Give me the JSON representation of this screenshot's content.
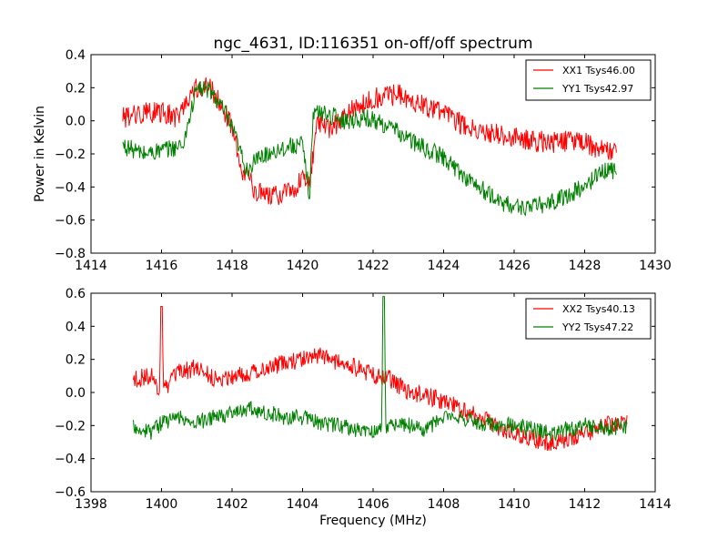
{
  "chart_data": [
    {
      "type": "line",
      "title": "ngc_4631, ID:116351 on-off/off spectrum",
      "xlabel": "",
      "ylabel": "Power in Kelvin",
      "xlim": [
        1414,
        1430
      ],
      "ylim": [
        -0.8,
        0.4
      ],
      "x_ticks": [
        "1414",
        "1416",
        "1418",
        "1420",
        "1422",
        "1424",
        "1426",
        "1428",
        "1430"
      ],
      "y_ticks": [
        "−0.8",
        "−0.6",
        "−0.4",
        "−0.2",
        "0.0",
        "0.2",
        "0.4"
      ],
      "grid": false,
      "legend_position": "top-right",
      "x_range": [
        1414.9,
        1428.9
      ],
      "series": [
        {
          "name": "XX1 Tsys46.00",
          "color": "#ff0000",
          "x": [
            1414.9,
            1415.5,
            1416.0,
            1416.5,
            1416.9,
            1417.3,
            1417.7,
            1418.0,
            1418.3,
            1418.7,
            1419.2,
            1419.7,
            1420.0,
            1420.2,
            1420.4,
            1420.8,
            1421.3,
            1421.8,
            1422.3,
            1422.8,
            1423.3,
            1424.0,
            1424.5,
            1425.0,
            1425.5,
            1426.0,
            1426.5,
            1427.0,
            1427.5,
            1428.0,
            1428.5,
            1428.9
          ],
          "values": [
            0.02,
            0.05,
            0.05,
            0.02,
            0.2,
            0.22,
            0.1,
            -0.05,
            -0.3,
            -0.43,
            -0.45,
            -0.42,
            -0.35,
            -0.4,
            0.0,
            -0.05,
            0.05,
            0.12,
            0.15,
            0.16,
            0.1,
            0.05,
            -0.02,
            -0.05,
            -0.08,
            -0.1,
            -0.12,
            -0.13,
            -0.12,
            -0.13,
            -0.18,
            -0.2
          ],
          "noise": 0.06
        },
        {
          "name": "YY1 Tsys42.97",
          "color": "#008000",
          "x": [
            1414.9,
            1415.5,
            1416.0,
            1416.6,
            1417.0,
            1417.4,
            1417.8,
            1418.1,
            1418.4,
            1418.8,
            1419.2,
            1419.7,
            1420.0,
            1420.2,
            1420.3,
            1420.6,
            1421.2,
            1421.8,
            1422.3,
            1422.8,
            1423.3,
            1424.0,
            1424.5,
            1425.0,
            1425.5,
            1426.0,
            1426.5,
            1427.0,
            1427.5,
            1428.0,
            1428.5,
            1428.9
          ],
          "values": [
            -0.15,
            -0.2,
            -0.18,
            -0.15,
            0.2,
            0.18,
            0.05,
            -0.1,
            -0.3,
            -0.22,
            -0.18,
            -0.15,
            -0.15,
            -0.45,
            0.05,
            0.05,
            0.0,
            0.02,
            -0.02,
            -0.08,
            -0.15,
            -0.22,
            -0.32,
            -0.4,
            -0.48,
            -0.52,
            -0.52,
            -0.5,
            -0.45,
            -0.4,
            -0.3,
            -0.3
          ],
          "noise": 0.05
        }
      ]
    },
    {
      "type": "line",
      "title": "",
      "xlabel": "Frequency (MHz)",
      "ylabel": "",
      "xlim": [
        1398,
        1414
      ],
      "ylim": [
        -0.6,
        0.6
      ],
      "x_ticks": [
        "1398",
        "1400",
        "1402",
        "1404",
        "1406",
        "1408",
        "1410",
        "1412",
        "1414"
      ],
      "y_ticks": [
        "−0.6",
        "−0.4",
        "−0.2",
        "0.0",
        "0.2",
        "0.4",
        "0.6"
      ],
      "grid": false,
      "legend_position": "top-right",
      "x_range": [
        1399.2,
        1413.2
      ],
      "series": [
        {
          "name": "XX2 Tsys40.13",
          "color": "#ff0000",
          "x": [
            1399.2,
            1399.7,
            1400.0,
            1400.5,
            1401.0,
            1401.5,
            1402.0,
            1402.5,
            1403.0,
            1403.5,
            1404.0,
            1404.5,
            1405.0,
            1405.5,
            1406.0,
            1406.5,
            1407.0,
            1407.5,
            1408.0,
            1408.5,
            1409.0,
            1409.5,
            1410.0,
            1410.5,
            1411.0,
            1411.5,
            1412.0,
            1412.5,
            1413.2
          ],
          "values": [
            0.08,
            0.1,
            0.0,
            0.12,
            0.15,
            0.08,
            0.1,
            0.12,
            0.15,
            0.18,
            0.2,
            0.22,
            0.18,
            0.15,
            0.1,
            0.08,
            0.0,
            -0.02,
            -0.05,
            -0.1,
            -0.15,
            -0.2,
            -0.25,
            -0.28,
            -0.3,
            -0.28,
            -0.25,
            -0.2,
            -0.18
          ],
          "spikes": [
            {
              "x": 1400.0,
              "y": 0.52
            }
          ],
          "noise": 0.05
        },
        {
          "name": "YY2 Tsys47.22",
          "color": "#008000",
          "x": [
            1399.2,
            1399.7,
            1400.0,
            1400.5,
            1401.0,
            1401.5,
            1402.0,
            1402.5,
            1403.0,
            1403.5,
            1404.0,
            1404.5,
            1405.0,
            1405.5,
            1406.0,
            1406.5,
            1407.0,
            1407.5,
            1408.0,
            1408.5,
            1409.0,
            1409.5,
            1410.0,
            1410.5,
            1411.0,
            1411.5,
            1412.0,
            1412.5,
            1413.2
          ],
          "values": [
            -0.2,
            -0.25,
            -0.18,
            -0.15,
            -0.18,
            -0.15,
            -0.12,
            -0.1,
            -0.12,
            -0.15,
            -0.15,
            -0.18,
            -0.2,
            -0.22,
            -0.25,
            -0.2,
            -0.2,
            -0.22,
            -0.15,
            -0.15,
            -0.18,
            -0.2,
            -0.2,
            -0.22,
            -0.25,
            -0.22,
            -0.2,
            -0.22,
            -0.2
          ],
          "spikes": [
            {
              "x": 1406.3,
              "y": 0.58
            }
          ],
          "noise": 0.045
        }
      ]
    }
  ]
}
